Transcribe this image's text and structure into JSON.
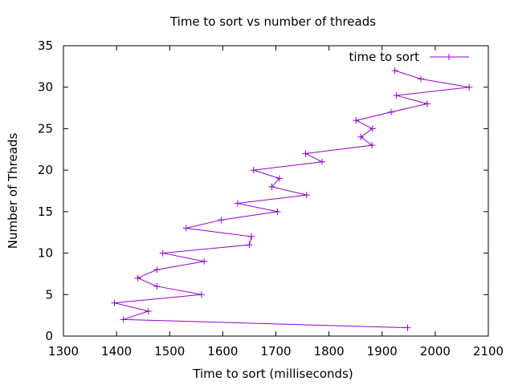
{
  "chart_data": {
    "type": "line",
    "title": "Time to sort vs number of threads",
    "xlabel": "Time to sort (milliseconds)",
    "ylabel": "Number of Threads",
    "xlim": [
      1300,
      2100
    ],
    "ylim": [
      0,
      35
    ],
    "x_ticks": [
      "1300",
      "1400",
      "1500",
      "1600",
      "1700",
      "1800",
      "1900",
      "2000",
      "2100"
    ],
    "y_ticks": [
      "0",
      "5",
      "10",
      "15",
      "20",
      "25",
      "30",
      "35"
    ],
    "grid": false,
    "legend_position": "top-right",
    "series": [
      {
        "name": "time to sort",
        "color": "#9400d3",
        "marker": "plus",
        "points": [
          {
            "x": 1948,
            "y": 1
          },
          {
            "x": 1413,
            "y": 2
          },
          {
            "x": 1460,
            "y": 3
          },
          {
            "x": 1396,
            "y": 4
          },
          {
            "x": 1560,
            "y": 5
          },
          {
            "x": 1476,
            "y": 6
          },
          {
            "x": 1440,
            "y": 7
          },
          {
            "x": 1476,
            "y": 8
          },
          {
            "x": 1565,
            "y": 9
          },
          {
            "x": 1487,
            "y": 10
          },
          {
            "x": 1650,
            "y": 11
          },
          {
            "x": 1654,
            "y": 12
          },
          {
            "x": 1531,
            "y": 13
          },
          {
            "x": 1597,
            "y": 14
          },
          {
            "x": 1703,
            "y": 15
          },
          {
            "x": 1628,
            "y": 16
          },
          {
            "x": 1758,
            "y": 17
          },
          {
            "x": 1692,
            "y": 18
          },
          {
            "x": 1707,
            "y": 19
          },
          {
            "x": 1658,
            "y": 20
          },
          {
            "x": 1787,
            "y": 21
          },
          {
            "x": 1756,
            "y": 22
          },
          {
            "x": 1881,
            "y": 23
          },
          {
            "x": 1860,
            "y": 24
          },
          {
            "x": 1882,
            "y": 25
          },
          {
            "x": 1851,
            "y": 26
          },
          {
            "x": 1917,
            "y": 27
          },
          {
            "x": 1985,
            "y": 28
          },
          {
            "x": 1927,
            "y": 29
          },
          {
            "x": 2064,
            "y": 30
          },
          {
            "x": 1973,
            "y": 31
          },
          {
            "x": 1924,
            "y": 32
          }
        ]
      }
    ]
  }
}
